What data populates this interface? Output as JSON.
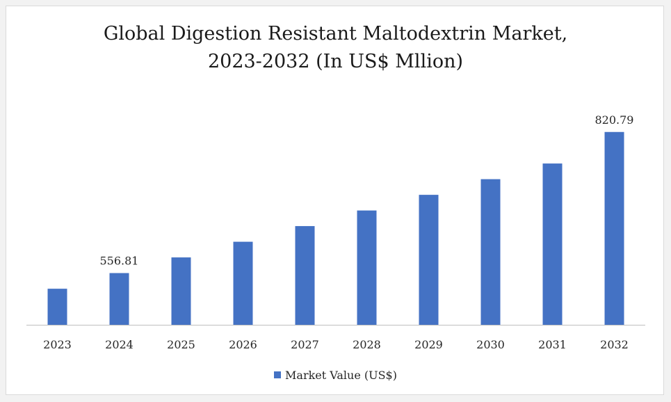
{
  "chart_data": {
    "type": "bar",
    "title_line1": "Global Digestion Resistant Maltodextrin Market,",
    "title_line2": "2023-2032 (In US$ Mllion)",
    "categories": [
      "2023",
      "2024",
      "2025",
      "2026",
      "2027",
      "2028",
      "2029",
      "2030",
      "2031",
      "2032"
    ],
    "series": [
      {
        "name": "Market Value (US$)",
        "color": "#4472c4",
        "values": [
          527.5,
          556.81,
          586.1,
          615.4,
          644.7,
          673.9,
          703.2,
          732.5,
          761.8,
          820.79
        ]
      }
    ],
    "data_labels": [
      {
        "index": 1,
        "text": "556.81"
      },
      {
        "index": 9,
        "text": "820.79"
      }
    ],
    "ylim": [
      460,
      840
    ],
    "grid": false,
    "legend_position": "bottom"
  }
}
